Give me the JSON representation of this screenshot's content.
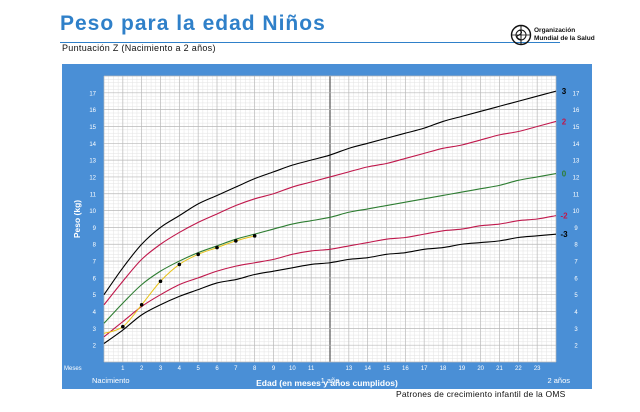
{
  "header": {
    "title": "Peso para la edad Niños",
    "subtitle": "Puntuación Z (Nacimiento a 2 años)",
    "org_line1": "Organización",
    "org_line2": "Mundial de la Salud",
    "footer": "Patrones de crecimiento infantil de la OMS"
  },
  "colors": {
    "accent": "#2f80c9",
    "frame": "#4a8fd6",
    "curve_3": "#000000",
    "curve_2": "#c0184c",
    "curve_0": "#2e7d32",
    "points": "#000000",
    "trend": "#e8c21a"
  },
  "chart_data": {
    "type": "line",
    "xlabel": "Edad (en meses y años cumplidos)",
    "ylabel": "Peso (kg)",
    "xlim": [
      0,
      24
    ],
    "ylim": [
      1,
      18
    ],
    "x_corner_label": "Meses",
    "x_ticks_major": [
      {
        "x": 0,
        "label": "Nacimiento"
      },
      {
        "x": 12,
        "label": "1 año"
      },
      {
        "x": 24,
        "label": "2 años"
      }
    ],
    "x_ticks_months": [
      1,
      2,
      3,
      4,
      5,
      6,
      7,
      8,
      9,
      10,
      11,
      13,
      14,
      15,
      16,
      17,
      18,
      19,
      20,
      21,
      22,
      23
    ],
    "y_ticks": [
      2,
      3,
      4,
      5,
      6,
      7,
      8,
      9,
      10,
      11,
      12,
      13,
      14,
      15,
      16,
      17
    ],
    "series": [
      {
        "name": "3",
        "color": "#000000",
        "x": [
          0,
          1,
          2,
          3,
          4,
          5,
          6,
          7,
          8,
          9,
          10,
          11,
          12,
          13,
          14,
          15,
          16,
          17,
          18,
          19,
          20,
          21,
          22,
          23,
          24
        ],
        "values": [
          5.0,
          6.6,
          8.0,
          9.0,
          9.7,
          10.4,
          10.9,
          11.4,
          11.9,
          12.3,
          12.7,
          13.0,
          13.3,
          13.7,
          14.0,
          14.3,
          14.6,
          14.9,
          15.3,
          15.6,
          15.9,
          16.2,
          16.5,
          16.8,
          17.1
        ]
      },
      {
        "name": "2",
        "color": "#c0184c",
        "x": [
          0,
          1,
          2,
          3,
          4,
          5,
          6,
          7,
          8,
          9,
          10,
          11,
          12,
          13,
          14,
          15,
          16,
          17,
          18,
          19,
          20,
          21,
          22,
          23,
          24
        ],
        "values": [
          4.4,
          5.8,
          7.1,
          8.0,
          8.7,
          9.3,
          9.8,
          10.3,
          10.7,
          11.0,
          11.4,
          11.7,
          12.0,
          12.3,
          12.6,
          12.8,
          13.1,
          13.4,
          13.7,
          13.9,
          14.2,
          14.5,
          14.7,
          15.0,
          15.3
        ]
      },
      {
        "name": "0",
        "color": "#2e7d32",
        "x": [
          0,
          1,
          2,
          3,
          4,
          5,
          6,
          7,
          8,
          9,
          10,
          11,
          12,
          13,
          14,
          15,
          16,
          17,
          18,
          19,
          20,
          21,
          22,
          23,
          24
        ],
        "values": [
          3.3,
          4.5,
          5.6,
          6.4,
          7.0,
          7.5,
          7.9,
          8.3,
          8.6,
          8.9,
          9.2,
          9.4,
          9.6,
          9.9,
          10.1,
          10.3,
          10.5,
          10.7,
          10.9,
          11.1,
          11.3,
          11.5,
          11.8,
          12.0,
          12.2
        ]
      },
      {
        "name": "-2",
        "color": "#c0184c",
        "x": [
          0,
          1,
          2,
          3,
          4,
          5,
          6,
          7,
          8,
          9,
          10,
          11,
          12,
          13,
          14,
          15,
          16,
          17,
          18,
          19,
          20,
          21,
          22,
          23,
          24
        ],
        "values": [
          2.5,
          3.4,
          4.3,
          5.0,
          5.6,
          6.0,
          6.4,
          6.7,
          6.9,
          7.1,
          7.4,
          7.6,
          7.7,
          7.9,
          8.1,
          8.3,
          8.4,
          8.6,
          8.8,
          8.9,
          9.1,
          9.2,
          9.4,
          9.5,
          9.7
        ]
      },
      {
        "name": "-3",
        "color": "#000000",
        "x": [
          0,
          1,
          2,
          3,
          4,
          5,
          6,
          7,
          8,
          9,
          10,
          11,
          12,
          13,
          14,
          15,
          16,
          17,
          18,
          19,
          20,
          21,
          22,
          23,
          24
        ],
        "values": [
          2.1,
          2.9,
          3.8,
          4.4,
          4.9,
          5.3,
          5.7,
          5.9,
          6.2,
          6.4,
          6.6,
          6.8,
          6.9,
          7.1,
          7.2,
          7.4,
          7.5,
          7.7,
          7.8,
          8.0,
          8.1,
          8.2,
          8.4,
          8.5,
          8.6
        ]
      }
    ],
    "measurements": {
      "x": [
        1,
        2,
        3,
        4,
        5,
        6,
        7,
        8
      ],
      "values": [
        3.1,
        4.4,
        5.8,
        6.8,
        7.4,
        7.8,
        8.2,
        8.5
      ]
    },
    "trend": {
      "x": [
        0,
        1,
        2,
        3,
        4,
        5,
        6,
        7,
        8
      ],
      "values": [
        2.7,
        3.1,
        4.4,
        5.8,
        6.8,
        7.4,
        7.8,
        8.2,
        8.5
      ]
    },
    "grid": true
  }
}
